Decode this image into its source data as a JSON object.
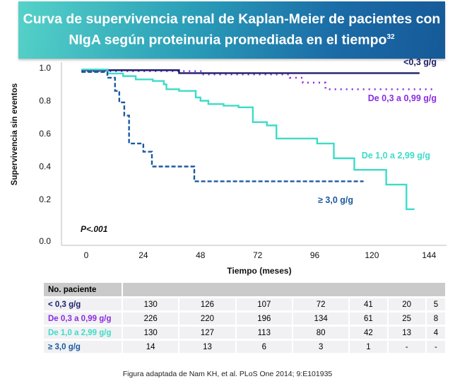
{
  "title": {
    "text": "Curva de supervivencia renal de Kaplan-Meier de pacientes con NIgA según proteinuria promediada en el tiempo",
    "superscript": "32"
  },
  "chart_data": {
    "type": "line",
    "step": true,
    "xlabel": "Tiempo (meses)",
    "ylabel": "Supervivencia sin eventos",
    "xlim": [
      0,
      144
    ],
    "ylim": [
      0,
      1.0
    ],
    "xticks": [
      "0",
      "24",
      "48",
      "72",
      "96",
      "120",
      "144"
    ],
    "yticks": [
      "1.0",
      "0.8",
      "0.6",
      "0.4",
      "0.2",
      "0.0"
    ],
    "grid": false,
    "annotation": "P<.001",
    "series": [
      {
        "name": "<0,3 g/g",
        "color": "#1b1f6b",
        "style": "solid",
        "x": [
          -2,
          39,
          140
        ],
        "y": [
          0.986,
          0.968,
          0.968
        ]
      },
      {
        "name": "De 0,3 a 0,99 g/g",
        "color": "#8a2be2",
        "style": "dotted",
        "x": [
          -2,
          48.6,
          85.5,
          91,
          100.5,
          147
        ],
        "y": [
          0.98,
          0.96,
          0.94,
          0.91,
          0.87,
          0.87
        ]
      },
      {
        "name": "De 1,0 a 2,99 g/g",
        "color": "#3ddcc8",
        "style": "solid",
        "x": [
          -2,
          9,
          15.5,
          20.8,
          28,
          32.6,
          33.7,
          39,
          46,
          48,
          51.3,
          57.7,
          64,
          70,
          75.9,
          79.9,
          97,
          104,
          112.6,
          126,
          134.5,
          137.9
        ],
        "y": [
          0.99,
          0.966,
          0.95,
          0.93,
          0.92,
          0.9,
          0.87,
          0.86,
          0.82,
          0.8,
          0.78,
          0.77,
          0.76,
          0.67,
          0.65,
          0.57,
          0.54,
          0.45,
          0.38,
          0.29,
          0.14,
          0.14
        ]
      },
      {
        "name": "≥ 3,0 g/g",
        "color": "#1a5aa0",
        "style": "dashed",
        "x": [
          -2,
          8.9,
          12.1,
          13.9,
          16,
          18,
          24,
          27.6,
          45.4,
          116.5
        ],
        "y": [
          0.975,
          0.94,
          0.86,
          0.79,
          0.71,
          0.54,
          0.49,
          0.4,
          0.31,
          0.31
        ]
      }
    ]
  },
  "table": {
    "header": "No. paciente",
    "rows": [
      {
        "label": "< 0,3 g/g",
        "color": "#1b1f6b",
        "values": [
          "130",
          "126",
          "107",
          "72",
          "41",
          "20",
          "5"
        ]
      },
      {
        "label": "De 0,3 a 0,99 g/g",
        "color": "#8a2be2",
        "values": [
          "226",
          "220",
          "196",
          "134",
          "61",
          "25",
          "8"
        ]
      },
      {
        "label": "De 1,0 a 2,99 g/g",
        "color": "#3ddcc8",
        "values": [
          "130",
          "127",
          "113",
          "80",
          "42",
          "13",
          "4"
        ]
      },
      {
        "label": "≥ 3,0 g/g",
        "color": "#1a5aa0",
        "values": [
          "14",
          "13",
          "6",
          "3",
          "1",
          "-",
          "-"
        ]
      }
    ]
  },
  "footnote": "Figura adaptada de Nam KH, et al. PLoS One 2014; 9:E101935"
}
